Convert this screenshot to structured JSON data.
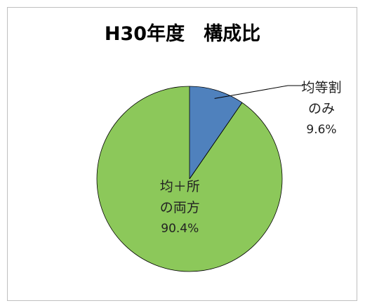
{
  "chart_data": {
    "type": "pie",
    "title": "H30年度　構成比",
    "categories": [
      "均等割のみ",
      "均＋所の両方"
    ],
    "values": [
      9.6,
      90.4
    ],
    "value_labels": [
      "9.6%",
      "90.4%"
    ],
    "colors": [
      "#4f81bd",
      "#8cc85a"
    ]
  }
}
